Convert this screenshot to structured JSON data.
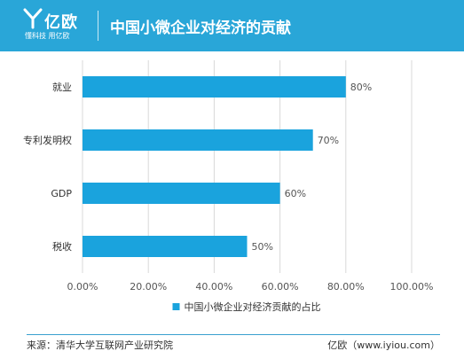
{
  "header": {
    "logo_name": "亿欧",
    "logo_slogan": "懂科技 用亿欧",
    "title": "中国小微企业对经济的贡献"
  },
  "chart_data": {
    "type": "bar",
    "orientation": "horizontal",
    "categories": [
      "就业",
      "专利发明权",
      "GDP",
      "税收"
    ],
    "series": [
      {
        "name": "中国小微企业对经济贡献的占比",
        "values": [
          80,
          70,
          60,
          50
        ],
        "data_labels": [
          "80%",
          "70%",
          "60%",
          "50%"
        ]
      }
    ],
    "x_ticks": [
      "0.00%",
      "20.00%",
      "40.00%",
      "60.00%",
      "80.00%",
      "100.00%"
    ],
    "xlim": [
      0,
      100
    ],
    "grid": true,
    "legend_position": "bottom",
    "bar_color": "#1aa3dd",
    "grid_color": "#d9d9d9"
  },
  "footer": {
    "source": "来源：清华大学互联网产业研究院",
    "website": "亿欧（www.iyiou.com）"
  },
  "colors": {
    "header_bg": "#29a6d8",
    "text": "#333333"
  }
}
